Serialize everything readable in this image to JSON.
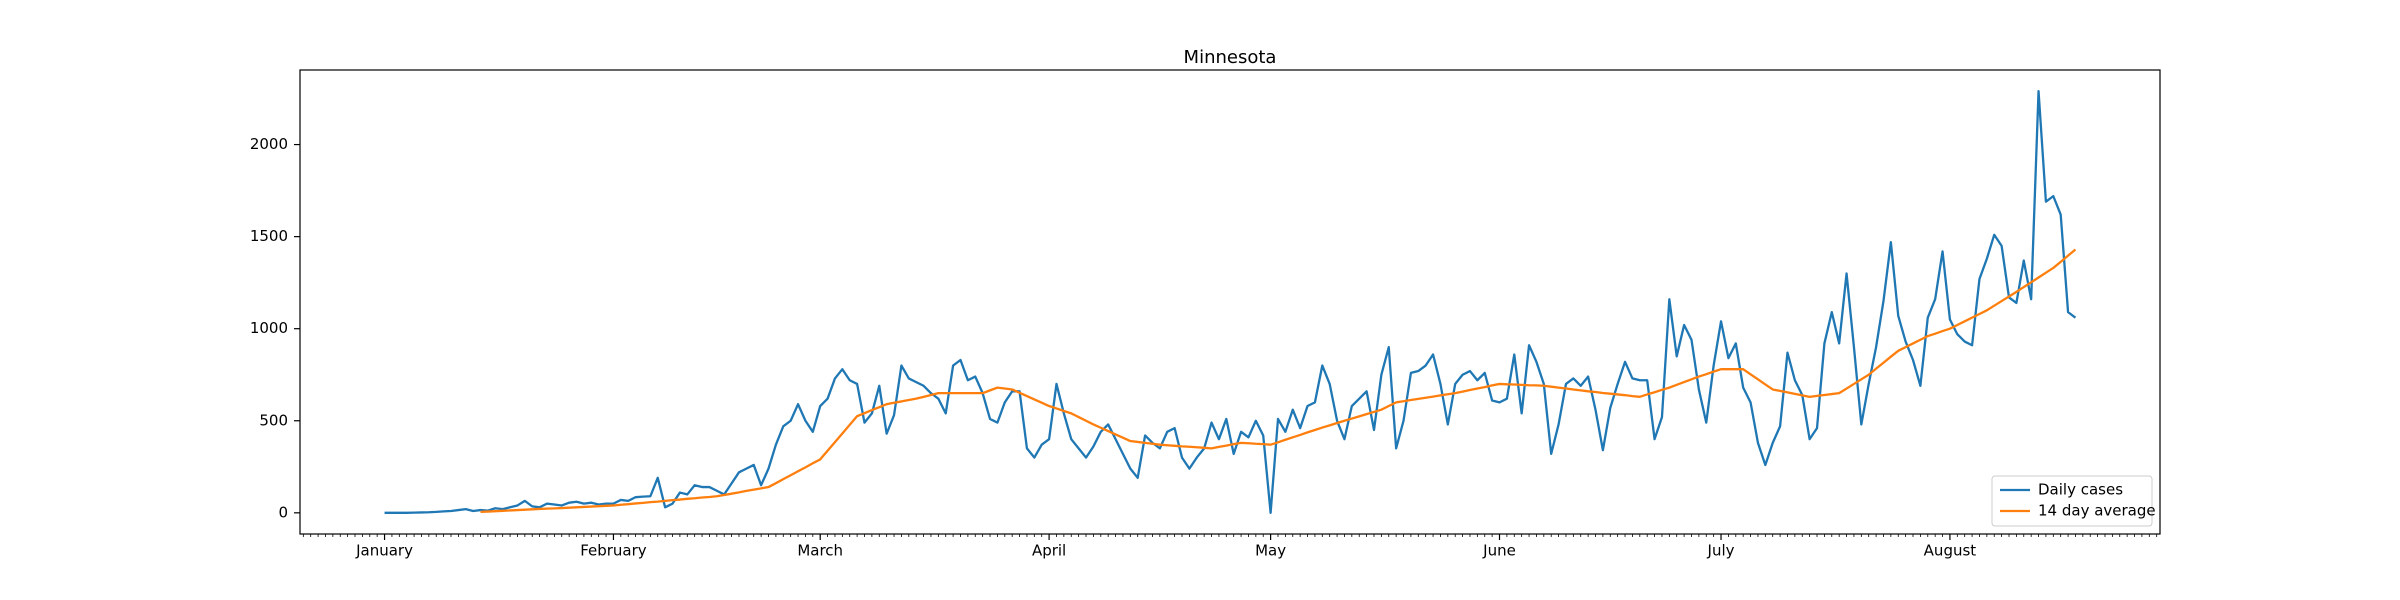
{
  "chart_data": {
    "type": "line",
    "title": "Minnesota",
    "categories": [
      "January",
      null,
      null,
      null,
      null,
      null,
      null,
      null,
      null,
      null,
      null,
      null,
      null,
      null,
      null,
      null,
      null,
      null,
      null,
      null,
      null,
      null,
      null,
      null,
      null,
      null,
      null,
      null,
      null,
      null,
      null,
      "February",
      null,
      null,
      null,
      null,
      null,
      null,
      null,
      null,
      null,
      null,
      null,
      null,
      null,
      null,
      null,
      null,
      null,
      null,
      null,
      null,
      null,
      null,
      null,
      null,
      null,
      null,
      null,
      "March",
      null,
      null,
      null,
      null,
      null,
      null,
      null,
      null,
      null,
      null,
      null,
      null,
      null,
      null,
      null,
      null,
      null,
      null,
      null,
      null,
      null,
      null,
      null,
      null,
      null,
      null,
      null,
      null,
      null,
      null,
      "April",
      null,
      null,
      null,
      null,
      null,
      null,
      null,
      null,
      null,
      null,
      null,
      null,
      null,
      null,
      null,
      null,
      null,
      null,
      null,
      null,
      null,
      null,
      null,
      null,
      null,
      null,
      null,
      null,
      null,
      "May",
      null,
      null,
      null,
      null,
      null,
      null,
      null,
      null,
      null,
      null,
      null,
      null,
      null,
      null,
      null,
      null,
      null,
      null,
      null,
      null,
      null,
      null,
      null,
      null,
      null,
      null,
      null,
      null,
      null,
      null,
      "June",
      null,
      null,
      null,
      null,
      null,
      null,
      null,
      null,
      null,
      null,
      null,
      null,
      null,
      null,
      null,
      null,
      null,
      null,
      null,
      null,
      null,
      null,
      null,
      null,
      null,
      null,
      null,
      null,
      null,
      "July",
      null,
      null,
      null,
      null,
      null,
      null,
      null,
      null,
      null,
      null,
      null,
      null,
      null,
      null,
      null,
      null,
      null,
      null,
      null,
      null,
      null,
      null,
      null,
      null,
      null,
      null,
      null,
      null,
      null,
      null,
      "August",
      null,
      null,
      null,
      null,
      null,
      null,
      null,
      null,
      null,
      null,
      null,
      null,
      null,
      null,
      null,
      null,
      null
    ],
    "series": [
      {
        "name": "Daily cases",
        "color": "#1f77b4",
        "values": [
          0,
          0,
          0,
          0,
          1,
          2,
          3,
          5,
          8,
          10,
          15,
          20,
          10,
          15,
          12,
          25,
          20,
          30,
          40,
          65,
          35,
          30,
          50,
          45,
          40,
          55,
          60,
          50,
          55,
          45,
          50,
          50,
          70,
          65,
          85,
          88,
          90,
          190,
          30,
          50,
          110,
          100,
          150,
          140,
          140,
          120,
          100,
          160,
          220,
          240,
          260,
          150,
          240,
          370,
          470,
          500,
          590,
          500,
          440,
          580,
          620,
          730,
          780,
          720,
          700,
          490,
          540,
          690,
          430,
          530,
          800,
          730,
          710,
          690,
          650,
          620,
          540,
          800,
          830,
          720,
          740,
          650,
          510,
          490,
          600,
          660,
          660,
          350,
          300,
          370,
          400,
          700,
          540,
          400,
          350,
          300,
          360,
          440,
          480,
          400,
          320,
          240,
          190,
          420,
          380,
          350,
          440,
          460,
          300,
          240,
          300,
          350,
          490,
          400,
          510,
          320,
          440,
          410,
          500,
          420,
          0,
          510,
          440,
          560,
          460,
          580,
          600,
          800,
          700,
          500,
          400,
          580,
          620,
          660,
          450,
          750,
          900,
          350,
          500,
          760,
          770,
          800,
          860,
          700,
          480,
          700,
          750,
          770,
          720,
          760,
          610,
          600,
          620,
          860,
          540,
          910,
          820,
          700,
          320,
          480,
          700,
          730,
          690,
          740,
          560,
          340,
          570,
          700,
          820,
          730,
          720,
          720,
          400,
          520,
          1160,
          850,
          1020,
          940,
          670,
          490,
          800,
          1040,
          840,
          920,
          680,
          600,
          380,
          260,
          380,
          470,
          870,
          720,
          640,
          400,
          460,
          920,
          1090,
          920,
          1300,
          900,
          480,
          700,
          900,
          1150,
          1470,
          1070,
          930,
          830,
          690,
          1060,
          1160,
          1420,
          1050,
          970,
          930,
          910,
          1270,
          1380,
          1510,
          1450,
          1170,
          1140,
          1370,
          1160,
          2290,
          1690,
          1720,
          1620,
          1090,
          1060
        ]
      },
      {
        "name": "14 day average",
        "color": "#ff7f0e",
        "values": [
          null,
          null,
          null,
          null,
          null,
          null,
          null,
          null,
          null,
          null,
          null,
          null,
          null,
          5,
          7,
          9,
          11,
          13,
          15,
          17,
          19,
          21,
          23,
          24,
          26,
          28,
          30,
          32,
          34,
          36,
          38,
          40,
          44,
          47,
          51,
          54,
          58,
          61,
          65,
          69,
          72,
          76,
          79,
          83,
          86,
          90,
          97,
          104,
          111,
          119,
          126,
          133,
          140,
          161,
          183,
          204,
          226,
          247,
          269,
          290,
          337,
          384,
          431,
          478,
          525,
          541,
          558,
          574,
          590,
          598,
          605,
          613,
          620,
          630,
          640,
          650,
          650,
          650,
          650,
          650,
          650,
          650,
          665,
          680,
          675,
          670,
          652,
          634,
          616,
          598,
          580,
          567,
          553,
          540,
          520,
          500,
          480,
          462,
          444,
          426,
          408,
          390,
          385,
          380,
          375,
          370,
          367,
          364,
          361,
          359,
          356,
          353,
          350,
          358,
          365,
          373,
          380,
          378,
          375,
          373,
          370,
          383,
          397,
          410,
          423,
          437,
          450,
          463,
          475,
          488,
          500,
          512,
          524,
          536,
          548,
          560,
          580,
          600,
          606,
          613,
          619,
          625,
          631,
          638,
          644,
          650,
          658,
          667,
          675,
          683,
          692,
          700,
          698,
          697,
          695,
          693,
          692,
          690,
          685,
          680,
          675,
          670,
          665,
          660,
          656,
          651,
          647,
          643,
          639,
          634,
          630,
          643,
          655,
          668,
          680,
          695,
          710,
          725,
          740,
          753,
          767,
          780,
          780,
          780,
          780,
          752,
          725,
          697,
          670,
          662,
          654,
          646,
          638,
          630,
          635,
          640,
          645,
          650,
          675,
          700,
          725,
          750,
          783,
          815,
          848,
          880,
          900,
          920,
          940,
          960,
          973,
          987,
          1000,
          1020,
          1040,
          1060,
          1080,
          1100,
          1125,
          1150,
          1175,
          1200,
          1226,
          1252,
          1278,
          1304,
          1330,
          1363,
          1397,
          1430
        ]
      }
    ],
    "ylim": [
      -115,
      2405
    ],
    "yticks": [
      0,
      500,
      1000,
      1500,
      2000
    ],
    "legend": "lower right"
  }
}
